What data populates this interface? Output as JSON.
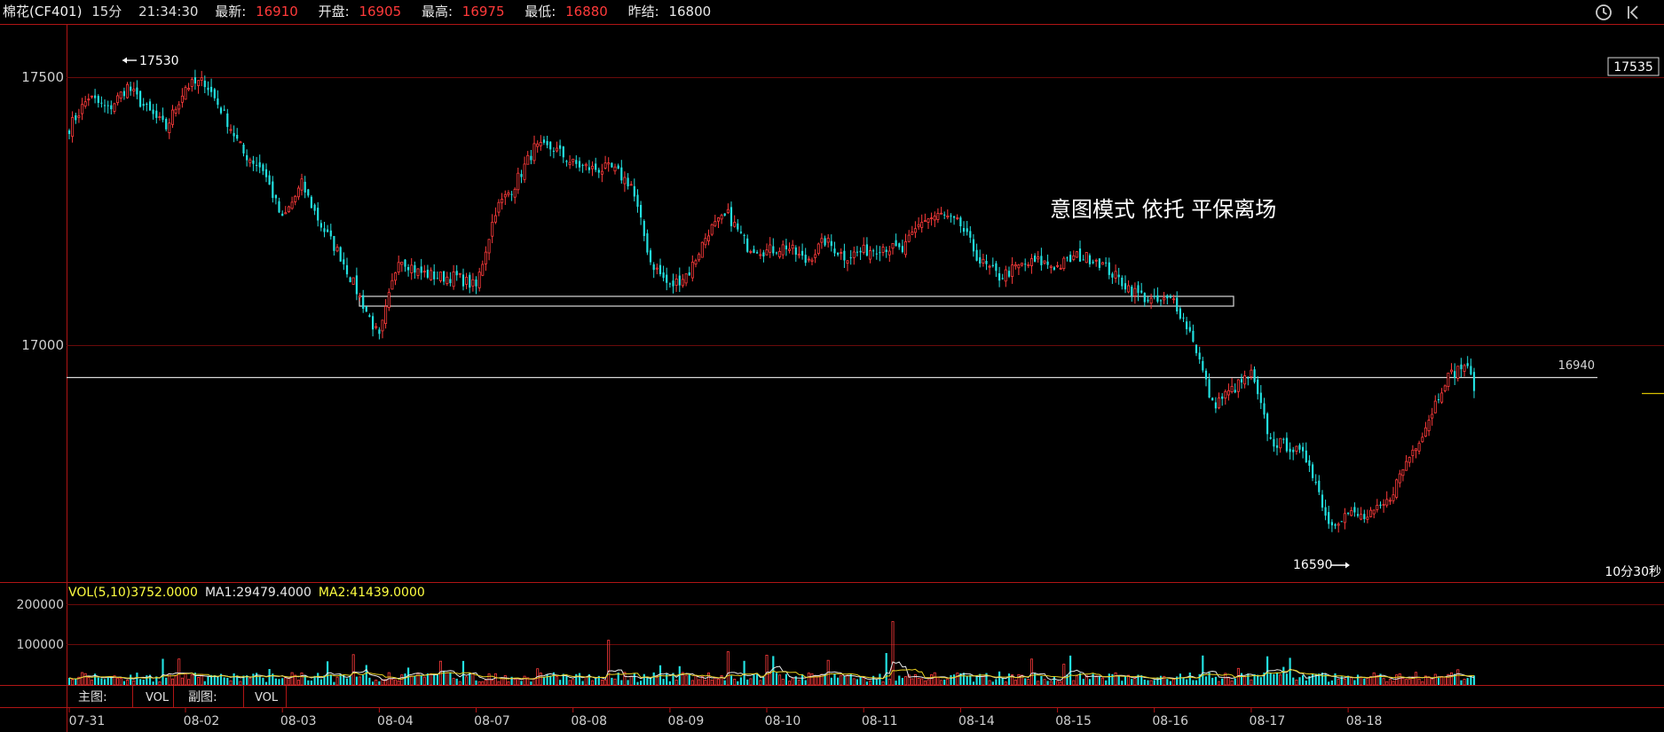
{
  "topbar": {
    "title": "棉花(CF401)",
    "period": "15分",
    "time": "21:34:30",
    "latest_label": "最新:",
    "latest": "16910",
    "open_label": "开盘:",
    "open": "16905",
    "high_label": "最高:",
    "high": "16975",
    "low_label": "最低:",
    "low": "16880",
    "prev_label": "昨结:",
    "prev": "16800",
    "icons": [
      "clock-icon",
      "collapse-icon"
    ]
  },
  "chart_data": {
    "type": "candlestick",
    "ylim": [
      16530,
      17600
    ],
    "y_ticks": [
      "17500",
      "17000"
    ],
    "x_ticks": [
      "07-31",
      "08-02",
      "08-03",
      "08-04",
      "08-07",
      "08-08",
      "08-09",
      "08-10",
      "08-11",
      "08-14",
      "08-15",
      "08-16",
      "08-17",
      "08-18"
    ],
    "annotation": "意图模式 依托 平保离场",
    "high_marker": "17530",
    "low_marker": "16590",
    "price_tag_right": "17535",
    "level_line": {
      "value": 16940,
      "label": "16940"
    },
    "support_zone": [
      17090,
      17075
    ],
    "countdown": "10分30秒",
    "close_path": [
      [
        0,
        17410
      ],
      [
        6,
        17470
      ],
      [
        12,
        17445
      ],
      [
        18,
        17490
      ],
      [
        24,
        17445
      ],
      [
        30,
        17410
      ],
      [
        36,
        17490
      ],
      [
        42,
        17500
      ],
      [
        48,
        17435
      ],
      [
        54,
        17360
      ],
      [
        60,
        17330
      ],
      [
        66,
        17230
      ],
      [
        72,
        17300
      ],
      [
        78,
        17220
      ],
      [
        84,
        17160
      ],
      [
        90,
        17080
      ],
      [
        96,
        17000
      ],
      [
        102,
        17160
      ],
      [
        108,
        17130
      ],
      [
        114,
        17120
      ],
      [
        120,
        17120
      ],
      [
        126,
        17100
      ],
      [
        132,
        17250
      ],
      [
        138,
        17300
      ],
      [
        144,
        17370
      ],
      [
        150,
        17370
      ],
      [
        156,
        17340
      ],
      [
        162,
        17330
      ],
      [
        168,
        17330
      ],
      [
        174,
        17300
      ],
      [
        180,
        17150
      ],
      [
        186,
        17100
      ],
      [
        192,
        17130
      ],
      [
        198,
        17210
      ],
      [
        204,
        17240
      ],
      [
        210,
        17180
      ],
      [
        216,
        17170
      ],
      [
        222,
        17180
      ],
      [
        228,
        17150
      ],
      [
        234,
        17190
      ],
      [
        240,
        17160
      ],
      [
        246,
        17170
      ],
      [
        252,
        17180
      ],
      [
        258,
        17170
      ],
      [
        264,
        17230
      ],
      [
        270,
        17240
      ],
      [
        276,
        17220
      ],
      [
        282,
        17150
      ],
      [
        288,
        17120
      ],
      [
        294,
        17140
      ],
      [
        300,
        17150
      ],
      [
        306,
        17140
      ],
      [
        312,
        17160
      ],
      [
        318,
        17155
      ],
      [
        324,
        17120
      ],
      [
        330,
        17090
      ],
      [
        336,
        17070
      ],
      [
        342,
        17075
      ],
      [
        348,
        17000
      ],
      [
        354,
        16870
      ],
      [
        360,
        16900
      ],
      [
        366,
        16930
      ],
      [
        372,
        16800
      ],
      [
        378,
        16790
      ],
      [
        384,
        16760
      ],
      [
        390,
        16640
      ],
      [
        396,
        16660
      ],
      [
        402,
        16650
      ],
      [
        408,
        16680
      ],
      [
        414,
        16760
      ],
      [
        420,
        16830
      ],
      [
        426,
        16920
      ],
      [
        432,
        16950
      ],
      [
        435,
        16910
      ]
    ],
    "volume": {
      "legend_label": "VOL(5,10)",
      "legend_value": "3752.0000",
      "ma1_label": "MA1:",
      "ma1_value": "29479.4000",
      "ma2_label": "MA2:",
      "ma2_value": "41439.0000",
      "ylim": [
        0,
        260000
      ],
      "y_ticks": [
        "200000",
        "100000"
      ]
    }
  },
  "bottombar": {
    "main_label": "主图:",
    "main_value": "VOL",
    "sub_label": "副图:",
    "sub_value": "VOL"
  }
}
